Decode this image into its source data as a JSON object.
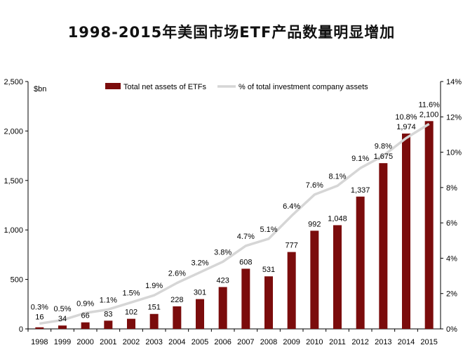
{
  "title": "1998-2015年美国市场ETF产品数量明显增加",
  "chart_data": {
    "type": "bar+line",
    "title": "1998-2015年美国市场ETF产品数量明显增加",
    "unit_label": "$bn",
    "categories": [
      "1998",
      "1999",
      "2000",
      "2001",
      "2002",
      "2003",
      "2004",
      "2005",
      "2006",
      "2007",
      "2008",
      "2009",
      "2010",
      "2011",
      "2012",
      "2013",
      "2014",
      "2015"
    ],
    "series": [
      {
        "name": "Total net assets of ETFs",
        "type": "bar",
        "axis": "left",
        "color": "#7b0c0c",
        "values": [
          16,
          34,
          66,
          83,
          102,
          151,
          228,
          301,
          423,
          608,
          531,
          777,
          992,
          1048,
          1337,
          1675,
          1974,
          2100
        ],
        "labels": [
          "16",
          "34",
          "66",
          "83",
          "102",
          "151",
          "228",
          "301",
          "423",
          "608",
          "531",
          "777",
          "992",
          "1,048",
          "1,337",
          "1,675",
          "1,974",
          "2,100"
        ]
      },
      {
        "name": "% of total investment company assets",
        "type": "line",
        "axis": "right",
        "color": "#d6d6d6",
        "values": [
          0.3,
          0.5,
          0.9,
          1.1,
          1.5,
          1.9,
          2.6,
          3.2,
          3.8,
          4.7,
          5.1,
          6.4,
          7.6,
          8.1,
          9.1,
          9.8,
          10.8,
          11.6
        ],
        "labels": [
          "0.3%",
          "0.5%",
          "0.9%",
          "1.1%",
          "1.5%",
          "1.9%",
          "2.6%",
          "3.2%",
          "3.8%",
          "4.7%",
          "5.1%",
          "6.4%",
          "7.6%",
          "8.1%",
          "9.1%",
          "9.8%",
          "10.8%",
          "11.6%"
        ]
      }
    ],
    "y_left": {
      "min": 0,
      "max": 2500,
      "ticks": [
        0,
        500,
        1000,
        1500,
        2000,
        2500
      ],
      "tick_labels": [
        "0",
        "500",
        "1,000",
        "1,500",
        "2,000",
        "2,500"
      ]
    },
    "y_right": {
      "min": 0,
      "max": 14,
      "ticks": [
        0,
        2,
        4,
        6,
        8,
        10,
        12,
        14
      ],
      "tick_labels": [
        "0%",
        "2%",
        "4%",
        "6%",
        "8%",
        "10%",
        "12%",
        "14%"
      ]
    },
    "legend_position": "top-center",
    "grid": false
  }
}
